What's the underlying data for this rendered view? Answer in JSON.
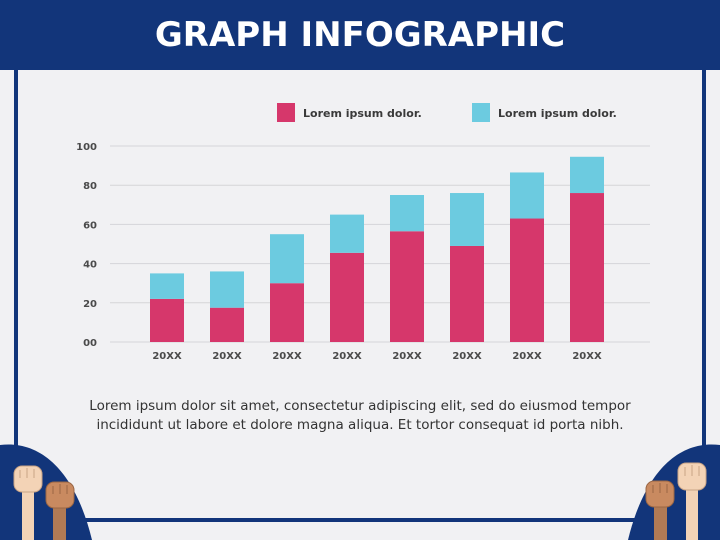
{
  "title": "GRAPH INFOGRAPHIC",
  "caption": "Lorem ipsum dolor sit amet, consectetur adipiscing elit, sed do eiusmod tempor incididunt ut labore et dolore magna aliqua. Et tortor consequat id porta nibh.",
  "colors": {
    "header": "#12357a",
    "series1": "#d6376b",
    "series2": "#6ccbe0",
    "background": "#f1f1f3"
  },
  "chart_data": {
    "type": "bar",
    "stacked": true,
    "categories": [
      "20XX",
      "20XX",
      "20XX",
      "20XX",
      "20XX",
      "20XX",
      "20XX",
      "20XX"
    ],
    "series": [
      {
        "name": "Lorem ipsum dolor.",
        "color": "#d6376b",
        "values": [
          22,
          17.5,
          30,
          45.5,
          56.5,
          49,
          63,
          76
        ]
      },
      {
        "name": "Lorem ipsum dolor.",
        "color": "#6ccbe0",
        "values": [
          13,
          18.5,
          25,
          19.5,
          18.5,
          27,
          23.5,
          18.5
        ]
      }
    ],
    "yticks": [
      "00",
      "20",
      "40",
      "60",
      "80",
      "100"
    ],
    "ylim": [
      0,
      100
    ],
    "grid": true,
    "legend": "top"
  }
}
